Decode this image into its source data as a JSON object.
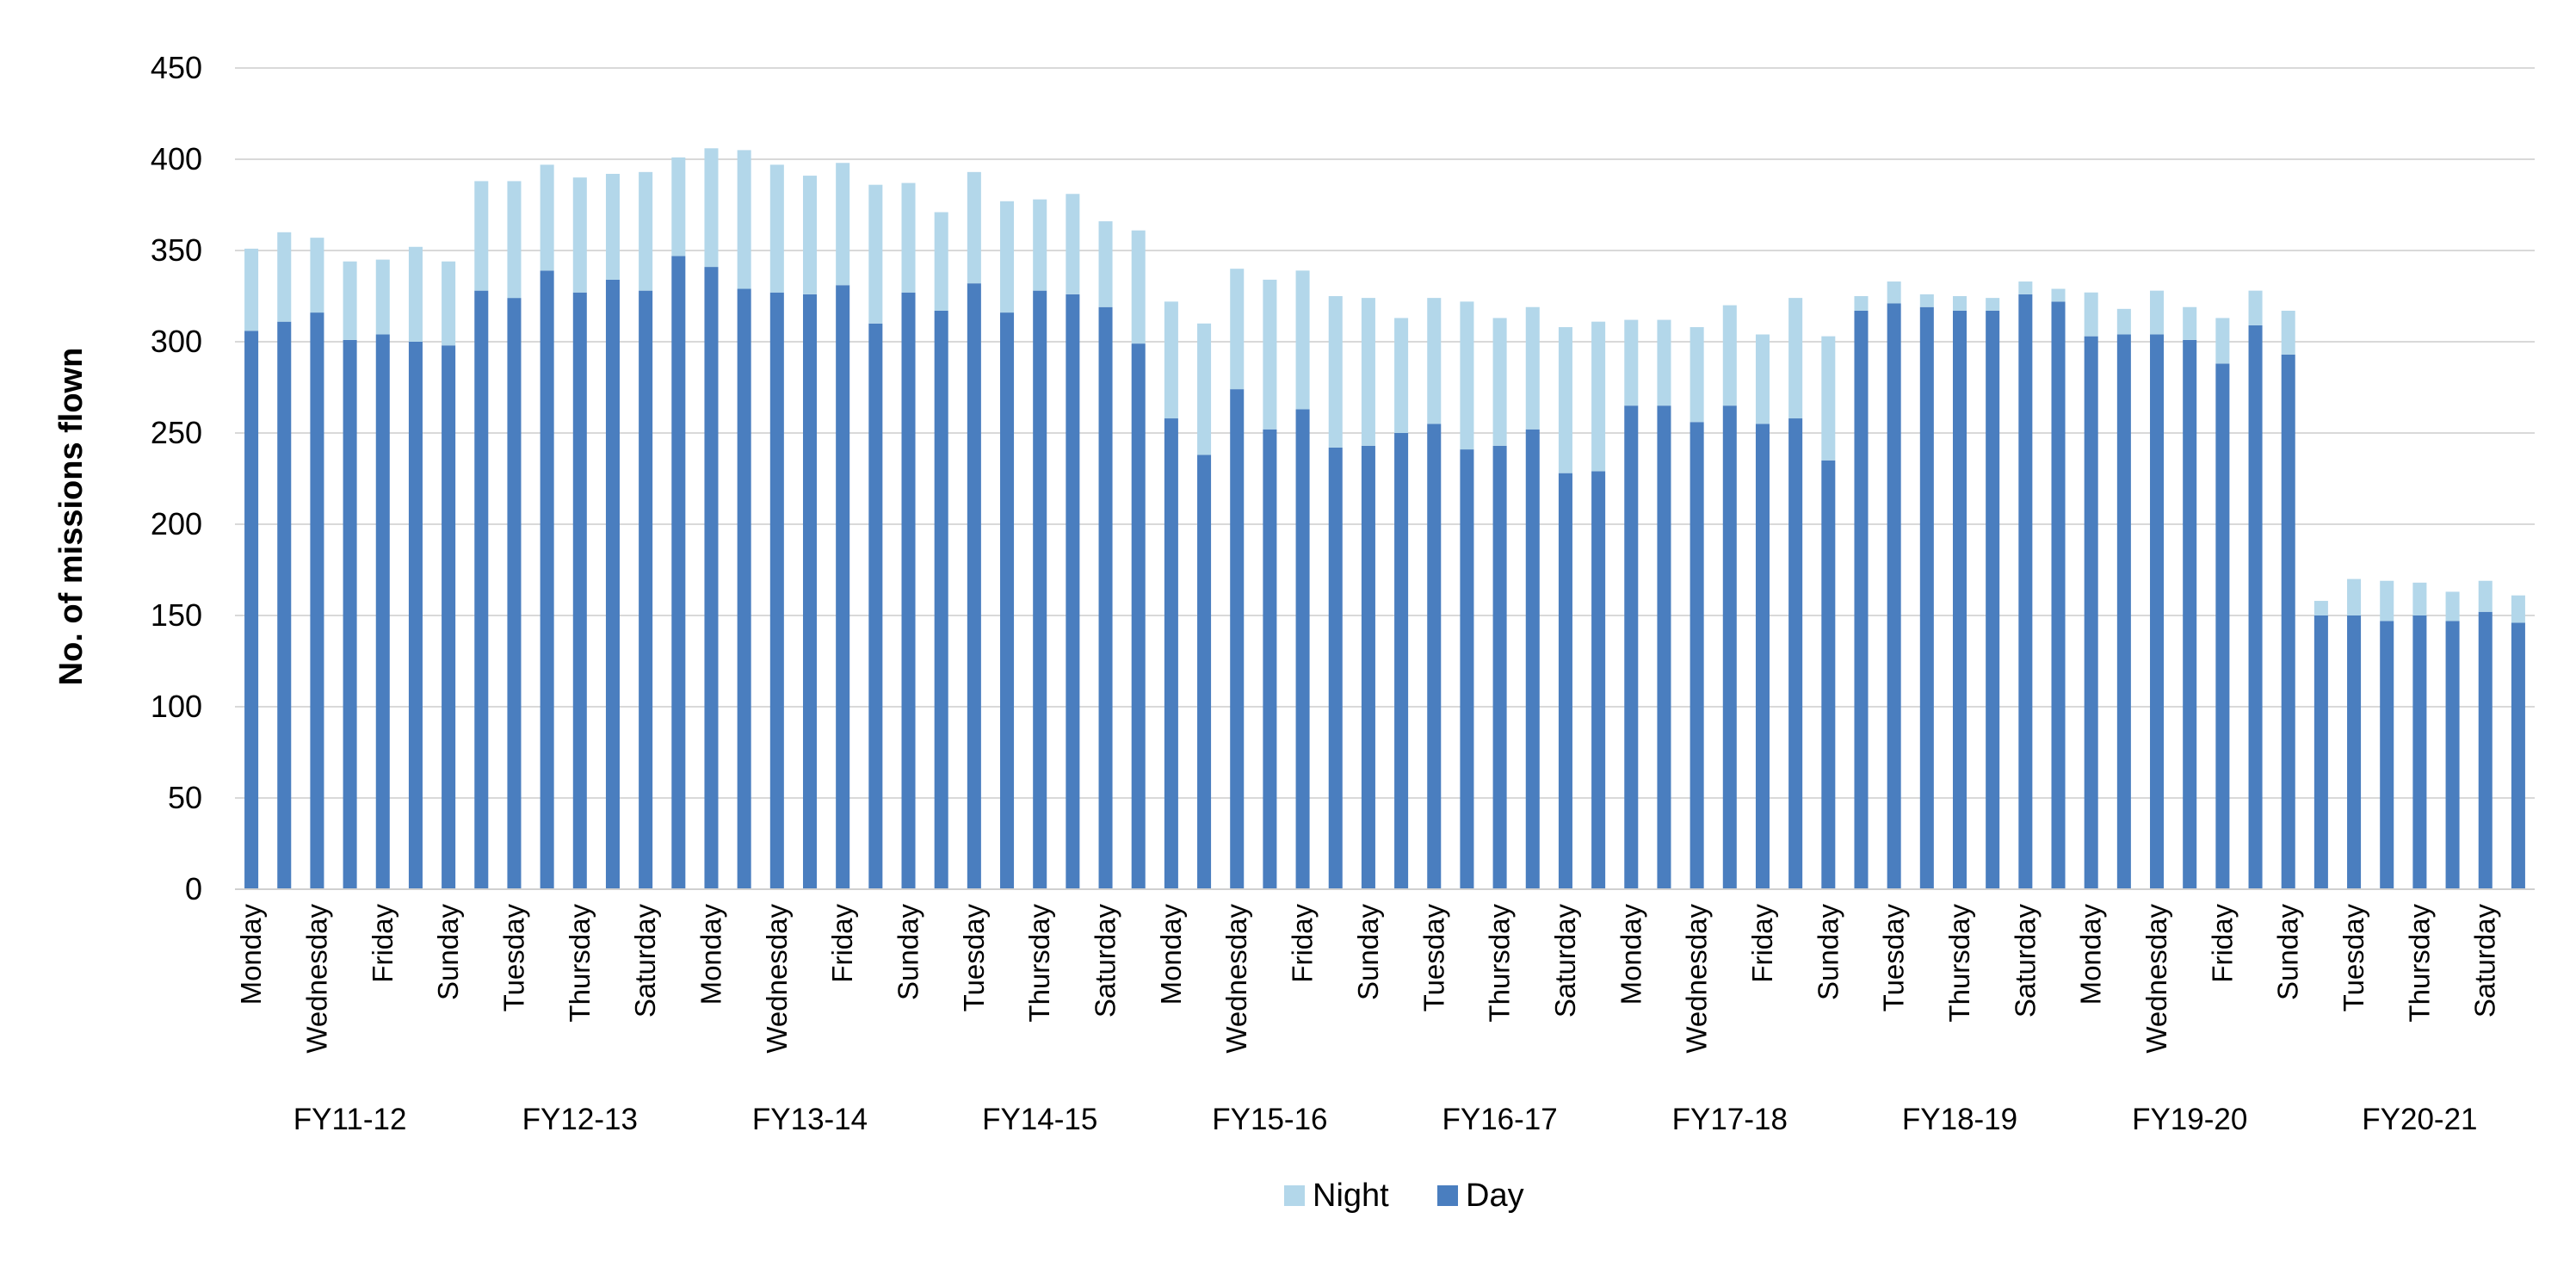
{
  "chart_data": {
    "type": "bar",
    "stacked": true,
    "ylabel": "No. of missions flown",
    "ylim": [
      0,
      450
    ],
    "yticks": [
      0,
      50,
      100,
      150,
      200,
      250,
      300,
      350,
      400,
      450
    ],
    "grid": true,
    "legend": "bottom-center",
    "groups": [
      "FY11-12",
      "FY12-13",
      "FY13-14",
      "FY14-15",
      "FY15-16",
      "FY16-17",
      "FY17-18",
      "FY18-19",
      "FY19-20",
      "FY20-21"
    ],
    "days": [
      "Monday",
      "Tuesday",
      "Wednesday",
      "Thursday",
      "Friday",
      "Saturday",
      "Sunday"
    ],
    "tick_labels": [
      "Monday",
      "Wednesday",
      "Friday",
      "Sunday",
      "Tuesday",
      "Thursday",
      "Saturday",
      "Monday",
      "Wednesday",
      "Friday",
      "Sunday",
      "Tuesday",
      "Thursday",
      "Saturday",
      "Monday",
      "Wednesday",
      "Friday",
      "Sunday",
      "Tuesday",
      "Thursday",
      "Saturday",
      "Monday",
      "Wednesday",
      "Friday",
      "Sunday",
      "Tuesday",
      "Thursday",
      "Saturday",
      "Monday",
      "Wednesday",
      "Friday",
      "Sunday",
      "Tuesday",
      "Thursday",
      "Saturday"
    ],
    "series": [
      {
        "name": "Day",
        "color": "#4a7ebf",
        "values": [
          306,
          311,
          316,
          301,
          304,
          300,
          298,
          328,
          324,
          339,
          327,
          334,
          328,
          347,
          341,
          329,
          327,
          326,
          331,
          310,
          327,
          317,
          332,
          316,
          328,
          326,
          319,
          299,
          258,
          238,
          274,
          252,
          263,
          242,
          243,
          250,
          255,
          241,
          243,
          252,
          228,
          229,
          265,
          265,
          256,
          265,
          255,
          258,
          235,
          317,
          321,
          319,
          317,
          317,
          326,
          322,
          303,
          304,
          304,
          301,
          288,
          309,
          293,
          150,
          150,
          147,
          150,
          147,
          152,
          146
        ]
      },
      {
        "name": "Night",
        "color": "#b3d7ea",
        "values": [
          45,
          49,
          41,
          43,
          41,
          52,
          46,
          60,
          64,
          58,
          63,
          58,
          65,
          54,
          65,
          76,
          70,
          65,
          67,
          76,
          60,
          54,
          61,
          61,
          50,
          55,
          47,
          62,
          64,
          72,
          66,
          82,
          76,
          83,
          81,
          63,
          69,
          81,
          70,
          67,
          80,
          82,
          47,
          47,
          52,
          55,
          49,
          66,
          68,
          8,
          12,
          7,
          8,
          7,
          7,
          7,
          24,
          14,
          24,
          18,
          25,
          19,
          24,
          8,
          20,
          22,
          18,
          16,
          17,
          15
        ]
      }
    ]
  }
}
